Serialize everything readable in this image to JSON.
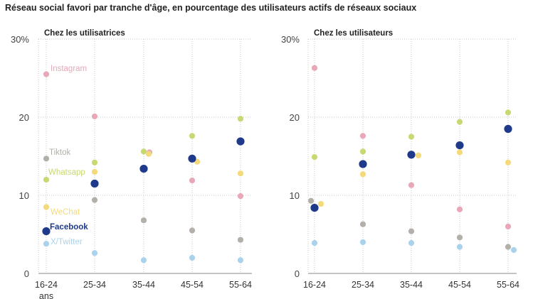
{
  "title": "Réseau social favori par tranche d'âge, en pourcentage des utilisateurs actifs de réseaux sociaux",
  "chart_data": [
    {
      "type": "scatter",
      "panel_title": "Chez les utilisatrices",
      "categories": [
        "16-24",
        "25-34",
        "35-44",
        "45-54",
        "55-64"
      ],
      "x_extra_label": "ans",
      "y_ticks": [
        "30%",
        "20",
        "10",
        "0"
      ],
      "ylim": [
        0,
        30
      ],
      "series": [
        {
          "name": "Instagram",
          "color": "#e8a8b8",
          "values": [
            25.5,
            20.1,
            15.5,
            11.9,
            9.9
          ]
        },
        {
          "name": "Tiktok",
          "color": "#b3b0a9",
          "values": [
            14.7,
            9.4,
            6.8,
            5.5,
            4.3
          ]
        },
        {
          "name": "Whatsapp",
          "color": "#c8d872",
          "values": [
            12.0,
            14.2,
            15.6,
            17.6,
            19.8
          ]
        },
        {
          "name": "WeChat",
          "color": "#f5da7c",
          "values": [
            8.5,
            13.0,
            15.3,
            14.3,
            12.8
          ]
        },
        {
          "name": "Facebook",
          "color": "#1f3a8a",
          "values": [
            5.4,
            11.5,
            13.4,
            14.7,
            16.9
          ]
        },
        {
          "name": "X/Twitter",
          "color": "#a9d3ec",
          "values": [
            3.8,
            2.6,
            1.7,
            2.0,
            1.7
          ]
        }
      ]
    },
    {
      "type": "scatter",
      "panel_title": "Chez les utilisateurs",
      "categories": [
        "16-24",
        "25-34",
        "35-44",
        "45-54",
        "55-64"
      ],
      "y_ticks": [
        "30%",
        "20",
        "10",
        "0"
      ],
      "ylim": [
        0,
        30
      ],
      "series": [
        {
          "name": "Instagram",
          "color": "#e8a8b8",
          "values": [
            26.3,
            17.6,
            11.3,
            8.2,
            6.0
          ]
        },
        {
          "name": "Tiktok",
          "color": "#b3b0a9",
          "values": [
            9.3,
            6.3,
            5.4,
            4.6,
            3.4
          ]
        },
        {
          "name": "Whatsapp",
          "color": "#c8d872",
          "values": [
            14.9,
            15.6,
            17.5,
            19.4,
            20.6
          ]
        },
        {
          "name": "WeChat",
          "color": "#f5da7c",
          "values": [
            8.9,
            12.7,
            15.1,
            15.5,
            14.2
          ]
        },
        {
          "name": "Facebook",
          "color": "#1f3a8a",
          "values": [
            8.4,
            14.0,
            15.2,
            16.4,
            18.5
          ]
        },
        {
          "name": "X/Twitter",
          "color": "#a9d3ec",
          "values": [
            3.9,
            4.0,
            3.9,
            3.4,
            3.0
          ]
        }
      ]
    }
  ]
}
